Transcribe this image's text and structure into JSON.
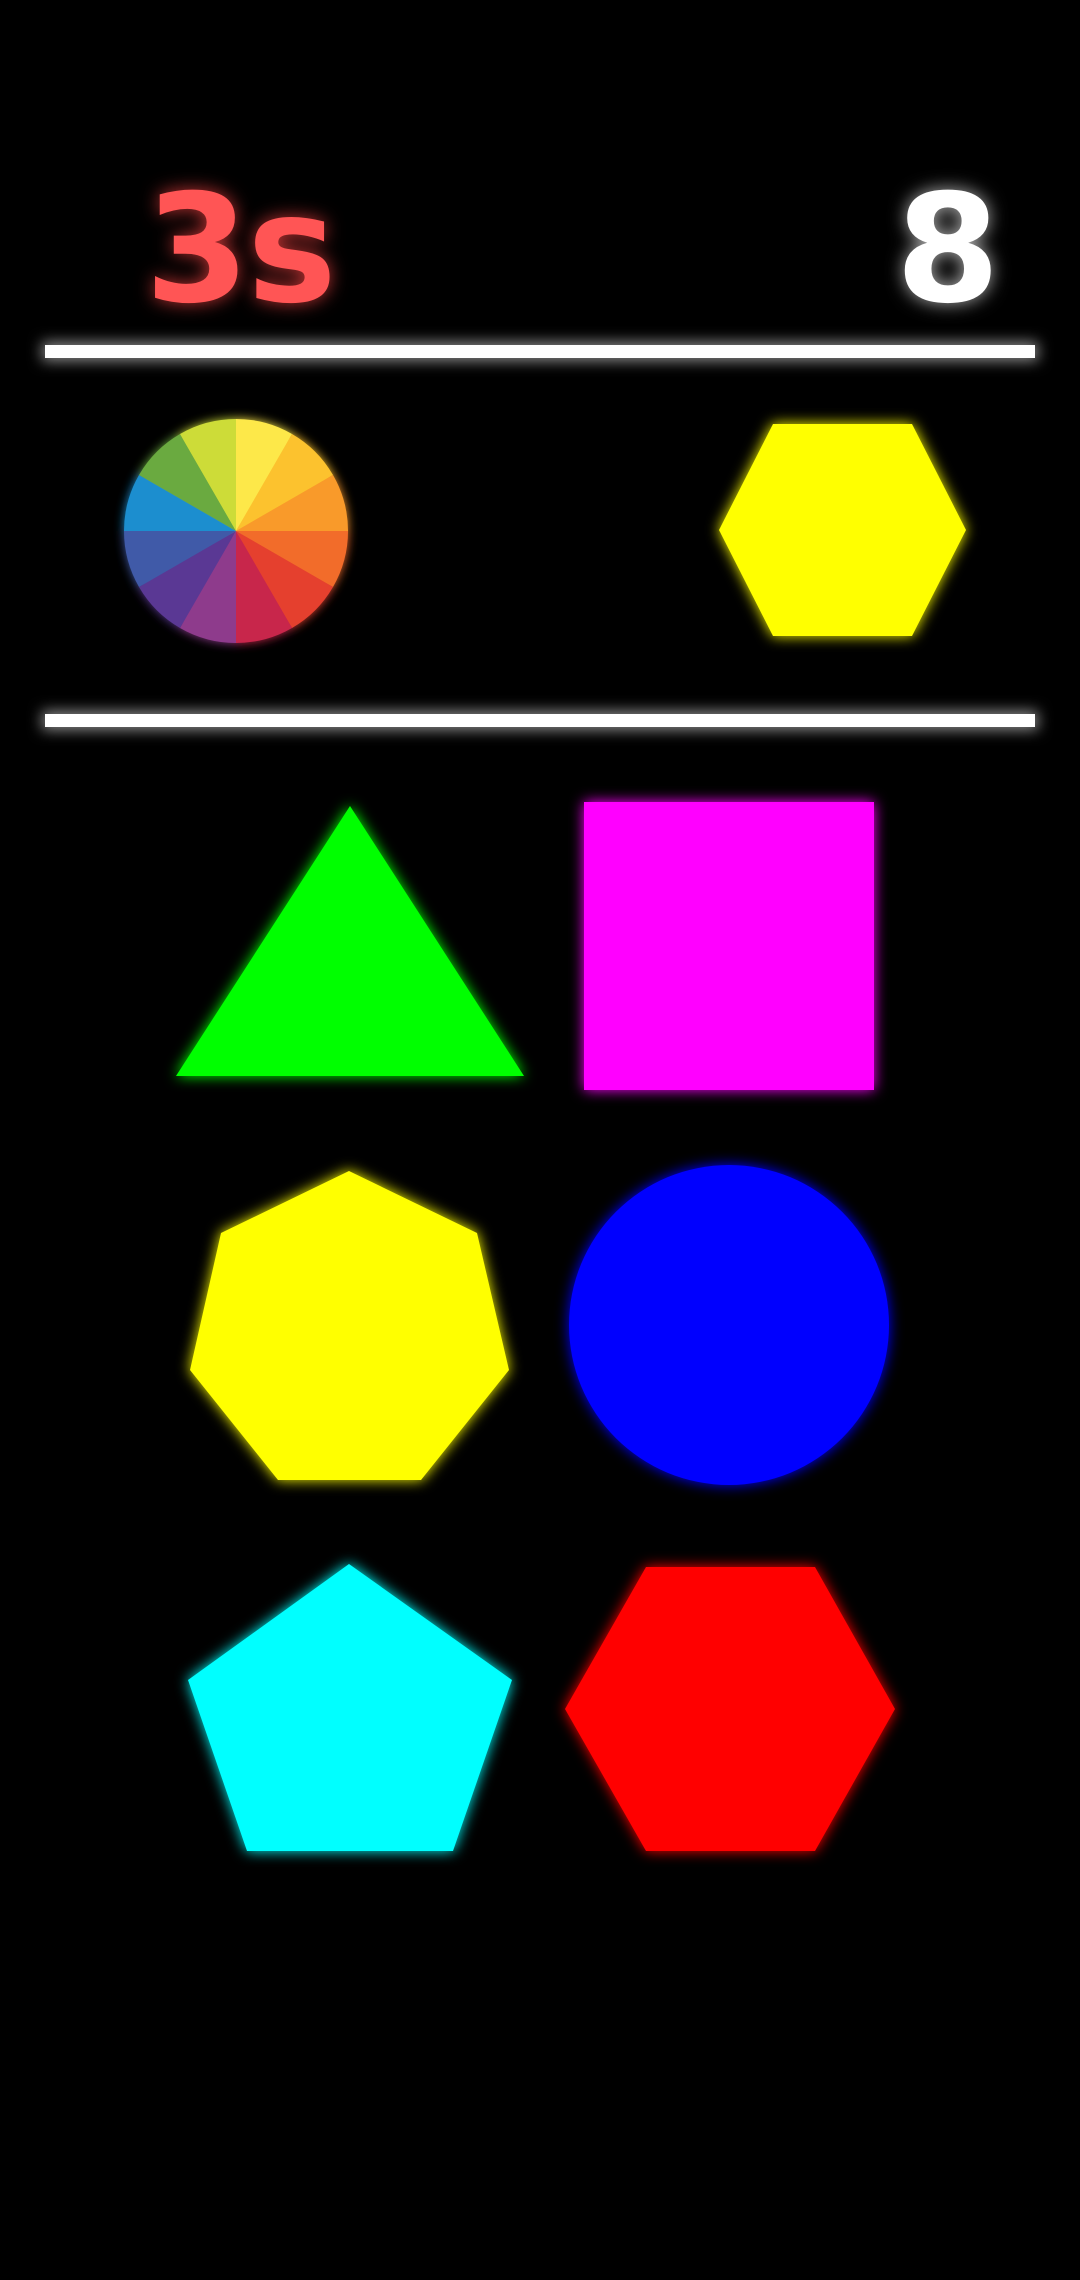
{
  "hud": {
    "timer": "3s",
    "score": "8"
  },
  "target": {
    "shape": "hexagon",
    "color": "#ffff00",
    "color_wheel_icon": "color-wheel-icon"
  },
  "choices": [
    {
      "shape": "triangle",
      "color": "#00ff00"
    },
    {
      "shape": "square",
      "color": "#ff00ff"
    },
    {
      "shape": "heptagon",
      "color": "#ffff00"
    },
    {
      "shape": "circle",
      "color": "#0000ff"
    },
    {
      "shape": "pentagon",
      "color": "#00ffff"
    },
    {
      "shape": "hexagon",
      "color": "#ff0000"
    }
  ],
  "colors": {
    "timer": "#ff5555",
    "score": "#ffffff",
    "divider": "#ffffff",
    "background": "#000000"
  }
}
